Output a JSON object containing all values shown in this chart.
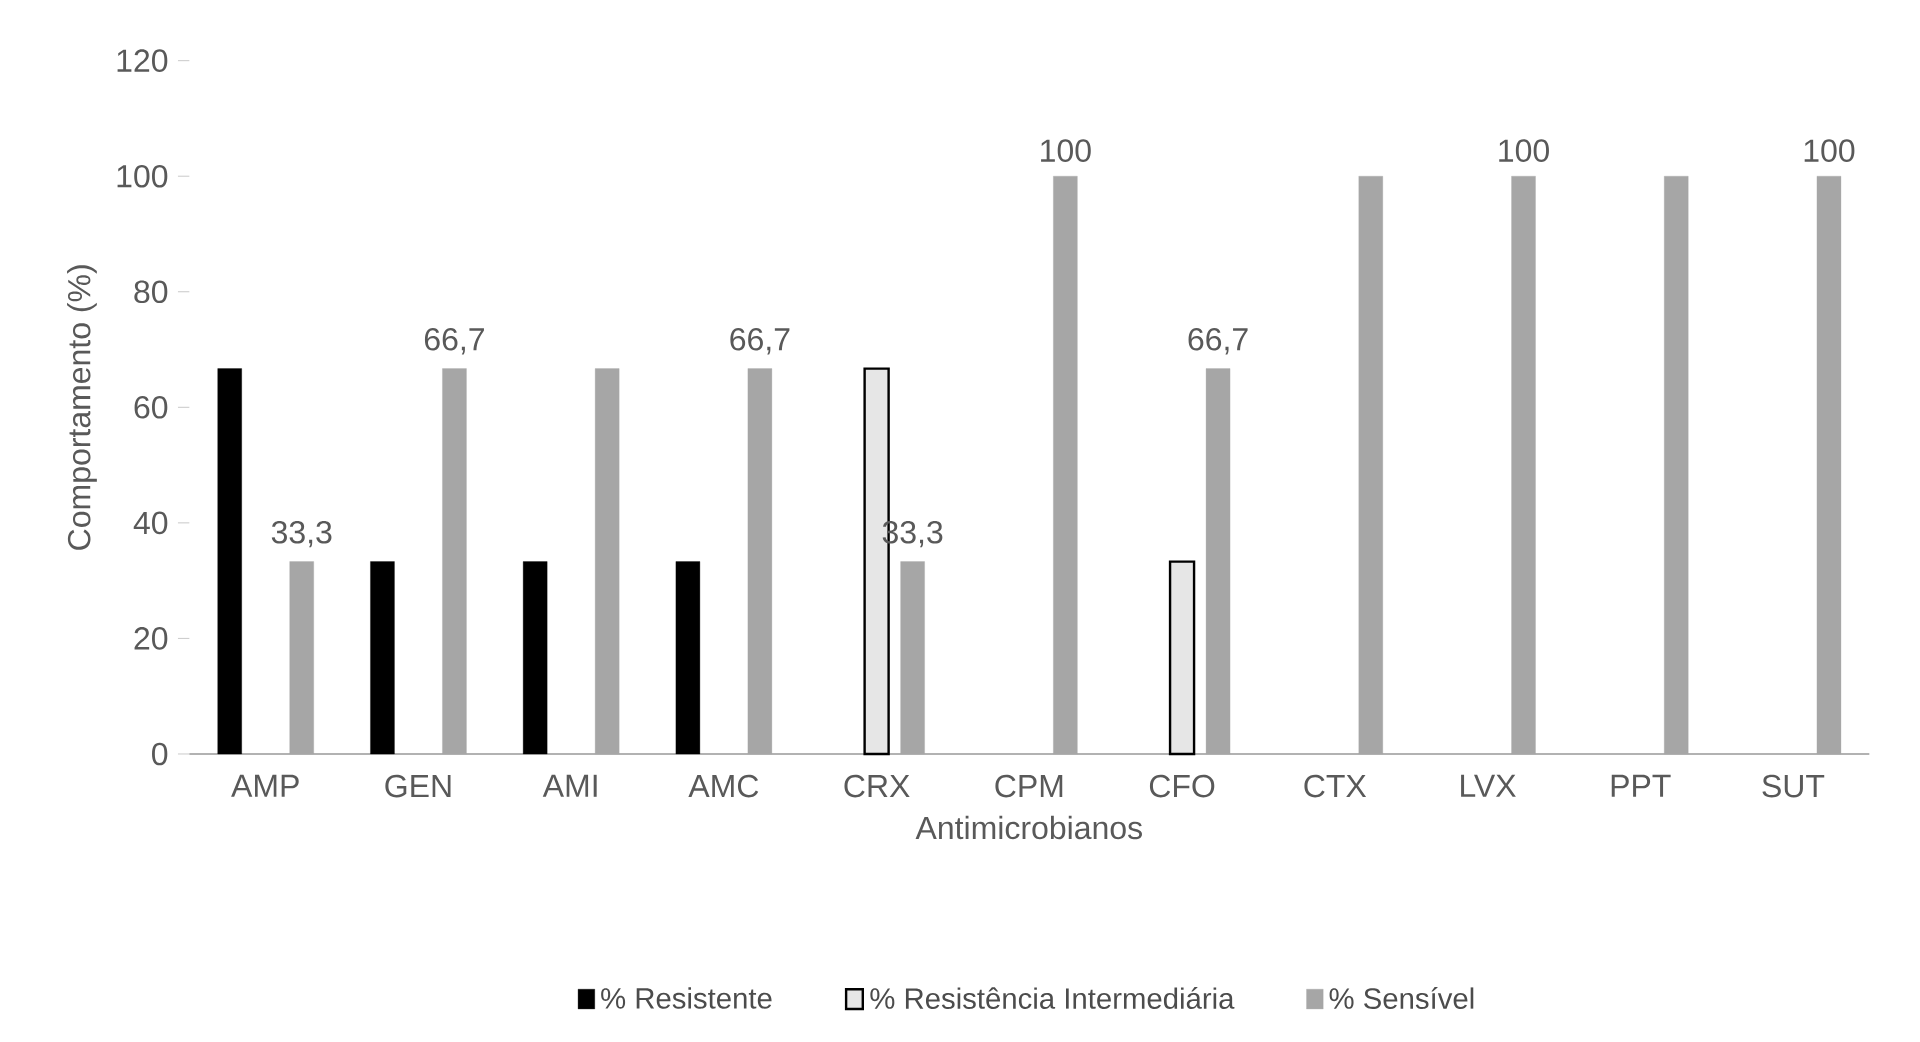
{
  "chart_data": {
    "type": "bar",
    "xlabel": "Antimicrobianos",
    "ylabel": "Comportamento (%)",
    "categories": [
      "AMP",
      "GEN",
      "AMI",
      "AMC",
      "CRX",
      "CPM",
      "CFO",
      "CTX",
      "LVX",
      "PPT",
      "SUT"
    ],
    "series": [
      {
        "name": "% Resistente",
        "color": "#000000",
        "values": [
          66.7,
          33.3,
          33.3,
          33.3,
          null,
          null,
          null,
          null,
          null,
          null,
          null
        ]
      },
      {
        "name": "% Resistência Intermediária",
        "color": "#e6e6e6",
        "values": [
          null,
          null,
          null,
          null,
          66.7,
          null,
          33.3,
          null,
          null,
          null,
          null
        ]
      },
      {
        "name": "% Sensível",
        "color": "#a6a6a6",
        "values": [
          33.3,
          66.7,
          66.7,
          66.7,
          33.3,
          100,
          66.7,
          100,
          100,
          100,
          100
        ],
        "value_labels": [
          "33,3",
          "66,7",
          null,
          "66,7",
          "33,3",
          "100",
          "66,7",
          null,
          "100",
          null,
          "100"
        ]
      }
    ],
    "ylim": [
      0,
      120
    ],
    "yticks": [
      0,
      20,
      40,
      60,
      80,
      100,
      120
    ],
    "grid": false,
    "legend": "bottom"
  }
}
